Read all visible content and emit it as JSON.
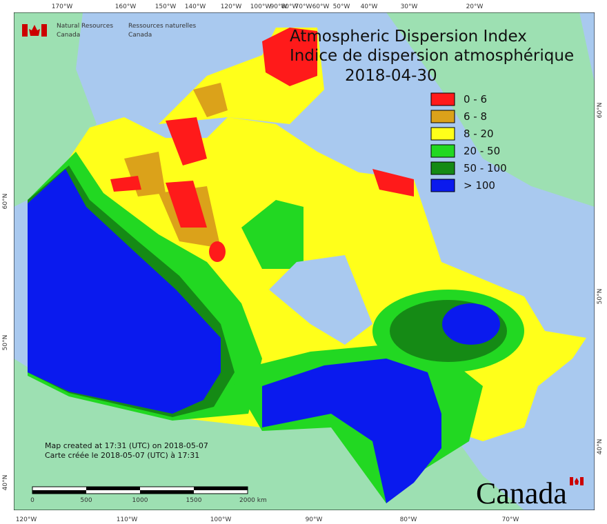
{
  "header": {
    "title_en": "Atmospheric Dispersion Index",
    "title_fr": "Indice de dispersion atmosphérique",
    "date": "2018-04-30"
  },
  "logo": {
    "en": [
      "Natural Resources",
      "Canada"
    ],
    "fr": [
      "Ressources naturelles",
      "Canada"
    ]
  },
  "legend": [
    {
      "label": "0 - 6",
      "color": "#ff1a1a"
    },
    {
      "label": "6 - 8",
      "color": "#dba21a"
    },
    {
      "label": "8 - 20",
      "color": "#ffff1a"
    },
    {
      "label": "20 - 50",
      "color": "#22d822"
    },
    {
      "label": "50 - 100",
      "color": "#158a15"
    },
    {
      "label": "> 100",
      "color": "#0a1aee"
    }
  ],
  "graticule": {
    "top": [
      "170°W",
      "160°W",
      "150°W",
      "140°W",
      "120°W",
      "100°W",
      "90°W",
      "80°W",
      "70°W",
      "60°W",
      "50°W",
      "40°W",
      "30°W",
      "20°W"
    ],
    "bottom": [
      "120°W",
      "110°W",
      "100°W",
      "90°W",
      "80°W",
      "70°W"
    ],
    "left": [
      "60°N",
      "50°N",
      "40°N"
    ],
    "right": [
      "60°N",
      "50°N",
      "40°N"
    ]
  },
  "credits": {
    "created_en": "Map created at 17:31 (UTC) on 2018-05-07",
    "created_fr": "Carte créée le 2018-05-07 (UTC) à 17:31"
  },
  "scale_bar": {
    "labels": [
      "0",
      "500",
      "1000",
      "1500",
      "2000 km"
    ]
  },
  "wordmark": "Canada"
}
